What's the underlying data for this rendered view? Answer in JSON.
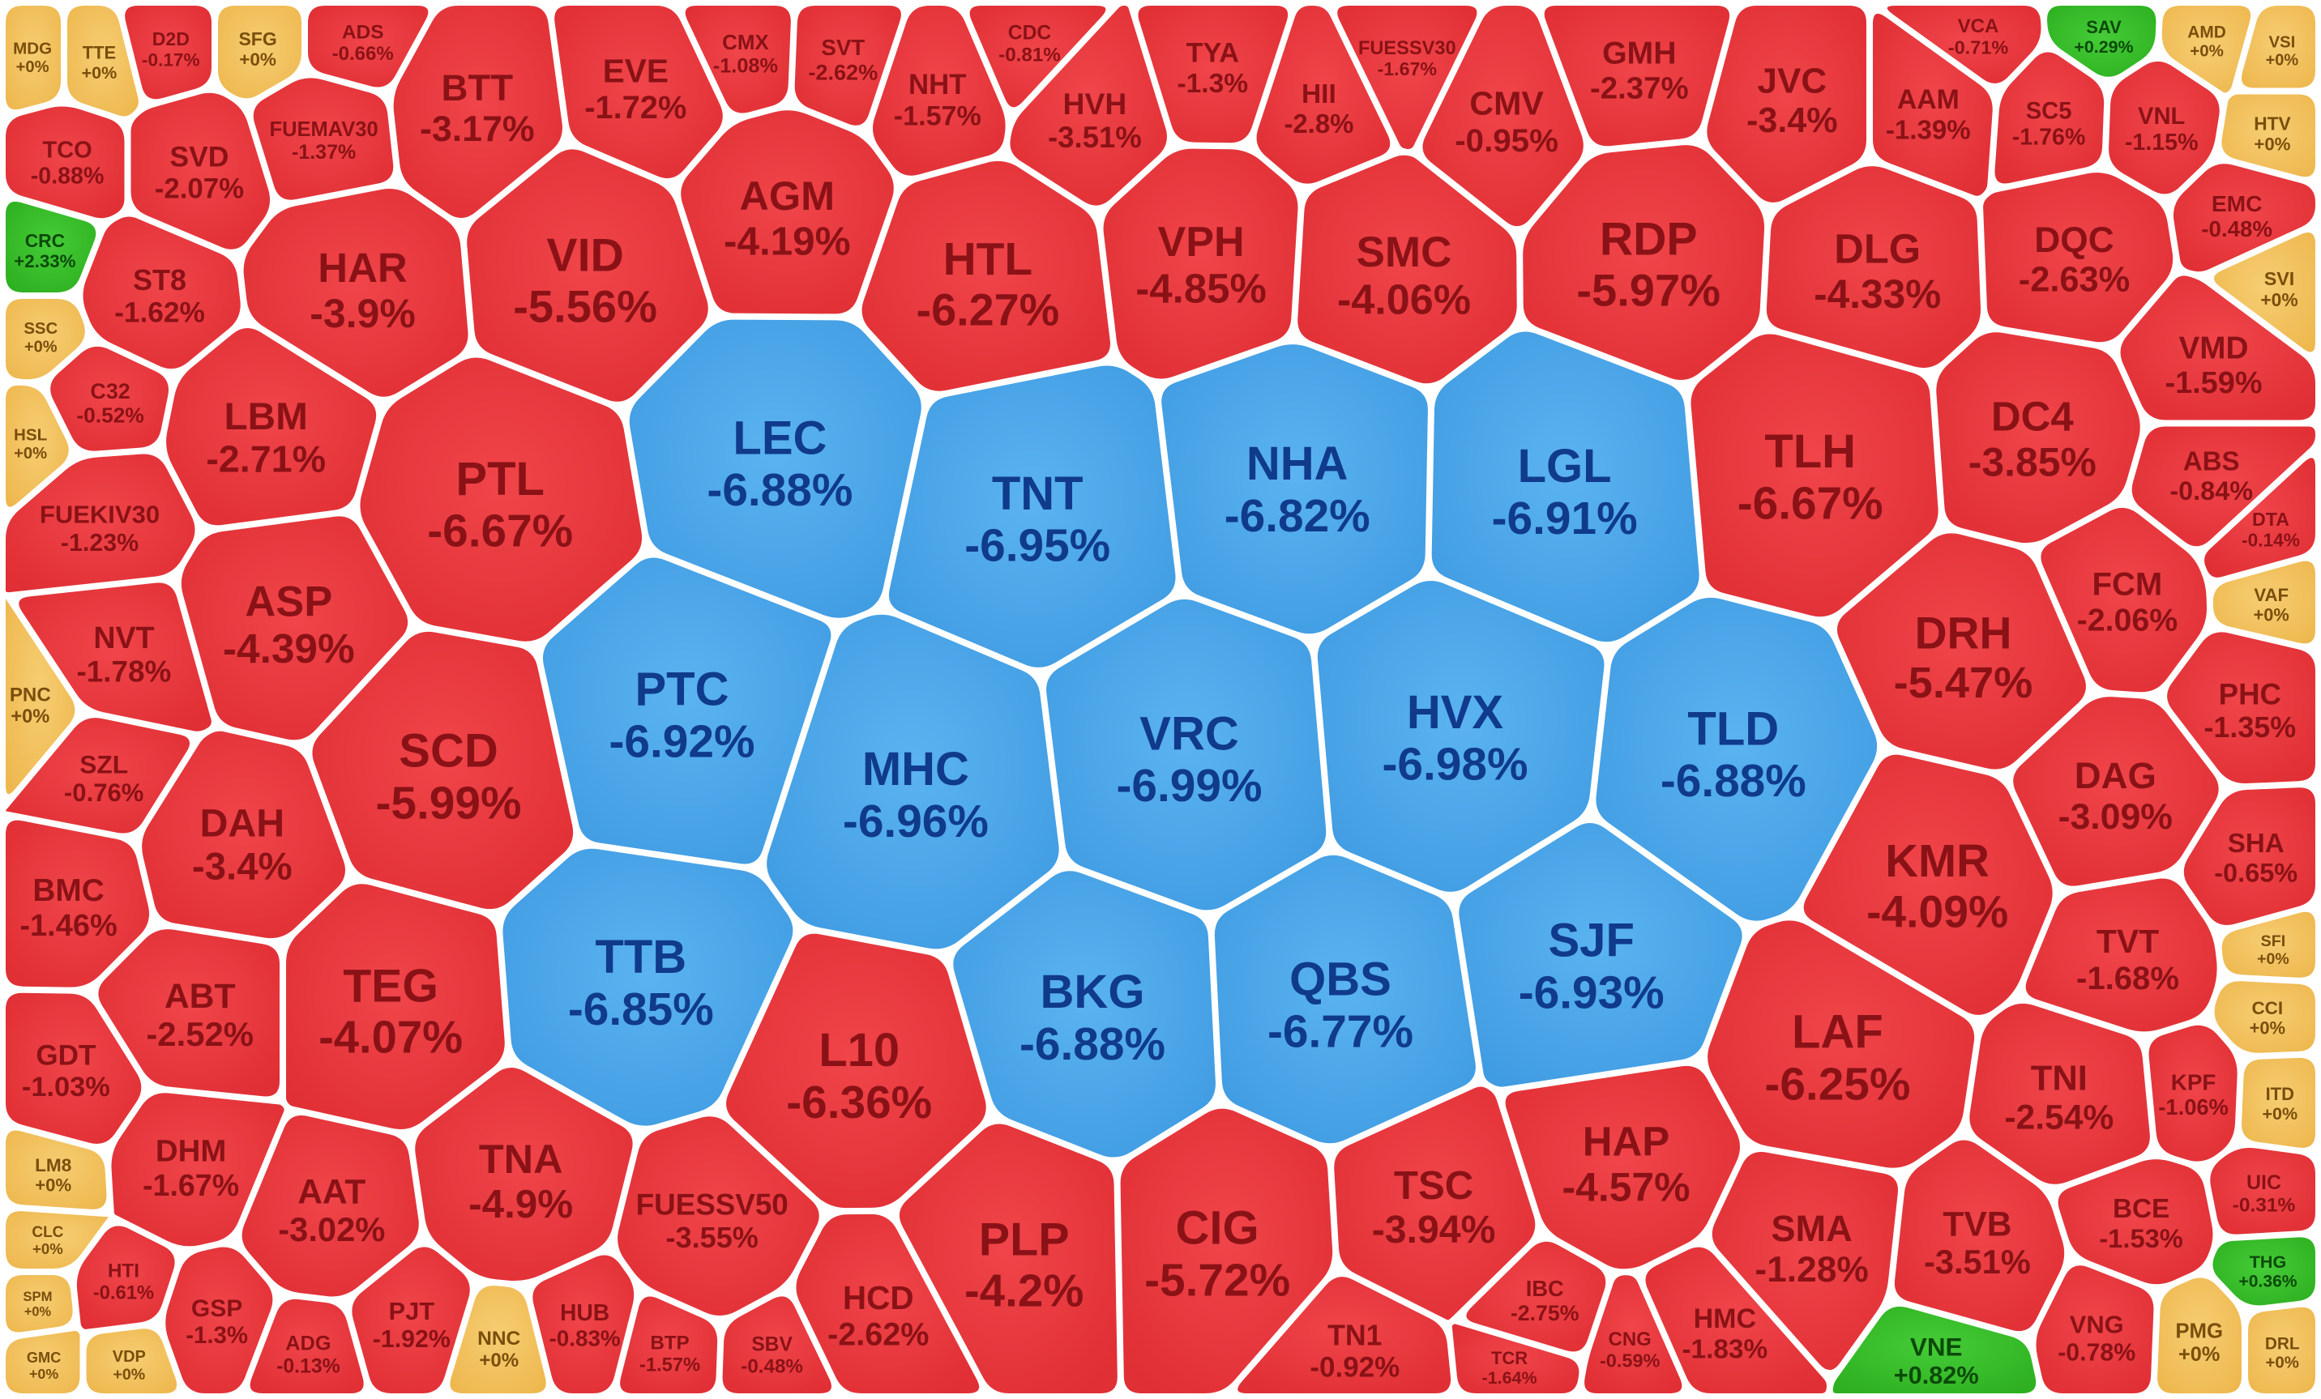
{
  "chart_data": {
    "type": "heatmap",
    "subtype": "voronoi-market-map",
    "value_unit": "%",
    "colors": {
      "down": "#e8343a",
      "down_text": "#8a1216",
      "floor": "#4ba6e8",
      "floor_text": "#103a8c",
      "flat": "#f2c360",
      "flat_text": "#7a4e0c",
      "up": "#34c028",
      "up_text": "#0b4a09",
      "border": "#ffffff"
    },
    "stocks": [
      {
        "ticker": "LEC",
        "change": "-6.88%",
        "state": "floor"
      },
      {
        "ticker": "TNT",
        "change": "-6.95%",
        "state": "floor"
      },
      {
        "ticker": "NHA",
        "change": "-6.82%",
        "state": "floor"
      },
      {
        "ticker": "LGL",
        "change": "-6.91%",
        "state": "floor"
      },
      {
        "ticker": "PTC",
        "change": "-6.92%",
        "state": "floor"
      },
      {
        "ticker": "MHC",
        "change": "-6.96%",
        "state": "floor"
      },
      {
        "ticker": "VRC",
        "change": "-6.99%",
        "state": "floor"
      },
      {
        "ticker": "HVX",
        "change": "-6.98%",
        "state": "floor"
      },
      {
        "ticker": "TLD",
        "change": "-6.88%",
        "state": "floor"
      },
      {
        "ticker": "TTB",
        "change": "-6.85%",
        "state": "floor"
      },
      {
        "ticker": "BKG",
        "change": "-6.88%",
        "state": "floor"
      },
      {
        "ticker": "QBS",
        "change": "-6.77%",
        "state": "floor"
      },
      {
        "ticker": "SJF",
        "change": "-6.93%",
        "state": "floor"
      },
      {
        "ticker": "HTL",
        "change": "-6.27%",
        "state": "down"
      },
      {
        "ticker": "VPH",
        "change": "-4.85%",
        "state": "down"
      },
      {
        "ticker": "SMC",
        "change": "-4.06%",
        "state": "down"
      },
      {
        "ticker": "RDP",
        "change": "-5.97%",
        "state": "down"
      },
      {
        "ticker": "DLG",
        "change": "-4.33%",
        "state": "down"
      },
      {
        "ticker": "AGM",
        "change": "-4.19%",
        "state": "down"
      },
      {
        "ticker": "VID",
        "change": "-5.56%",
        "state": "down"
      },
      {
        "ticker": "HAR",
        "change": "-3.9%",
        "state": "down"
      },
      {
        "ticker": "BTT",
        "change": "-3.17%",
        "state": "down"
      },
      {
        "ticker": "SVD",
        "change": "-2.07%",
        "state": "down"
      },
      {
        "ticker": "JVC",
        "change": "-3.4%",
        "state": "down"
      },
      {
        "ticker": "SC5",
        "change": "-1.76%",
        "state": "down"
      },
      {
        "ticker": "DQC",
        "change": "-2.63%",
        "state": "down"
      },
      {
        "ticker": "VNL",
        "change": "-1.15%",
        "state": "down"
      },
      {
        "ticker": "PTL",
        "change": "-6.67%",
        "state": "down"
      },
      {
        "ticker": "LBM",
        "change": "-2.71%",
        "state": "down"
      },
      {
        "ticker": "ASP",
        "change": "-4.39%",
        "state": "down"
      },
      {
        "ticker": "SCD",
        "change": "-5.99%",
        "state": "down"
      },
      {
        "ticker": "DAH",
        "change": "-3.4%",
        "state": "down"
      },
      {
        "ticker": "TEG",
        "change": "-4.07%",
        "state": "down"
      },
      {
        "ticker": "ABT",
        "change": "-2.52%",
        "state": "down"
      },
      {
        "ticker": "TNA",
        "change": "-4.9%",
        "state": "down"
      },
      {
        "ticker": "AAT",
        "change": "-3.02%",
        "state": "down"
      },
      {
        "ticker": "L10",
        "change": "-6.36%",
        "state": "down"
      },
      {
        "ticker": "PLP",
        "change": "-4.2%",
        "state": "down"
      },
      {
        "ticker": "CIG",
        "change": "-5.72%",
        "state": "down"
      },
      {
        "ticker": "TSC",
        "change": "-3.94%",
        "state": "down"
      },
      {
        "ticker": "HAP",
        "change": "-4.57%",
        "state": "down"
      },
      {
        "ticker": "LAF",
        "change": "-6.25%",
        "state": "down"
      },
      {
        "ticker": "TLH",
        "change": "-6.67%",
        "state": "down"
      },
      {
        "ticker": "DC4",
        "change": "-3.85%",
        "state": "down"
      },
      {
        "ticker": "DRH",
        "change": "-5.47%",
        "state": "down"
      },
      {
        "ticker": "KMR",
        "change": "-4.09%",
        "state": "down"
      },
      {
        "ticker": "DAG",
        "change": "-3.09%",
        "state": "down"
      },
      {
        "ticker": "TVB",
        "change": "-3.51%",
        "state": "down"
      },
      {
        "ticker": "TNI",
        "change": "-2.54%",
        "state": "down"
      },
      {
        "ticker": "FUESSV50",
        "change": "-3.55%",
        "state": "down"
      },
      {
        "ticker": "SMA",
        "change": "-1.28%",
        "state": "down"
      },
      {
        "ticker": "BCE",
        "change": "-1.53%",
        "state": "down"
      },
      {
        "ticker": "VMD",
        "change": "-1.59%",
        "state": "down"
      },
      {
        "ticker": "FCM",
        "change": "-2.06%",
        "state": "down"
      },
      {
        "ticker": "TVT",
        "change": "-1.68%",
        "state": "down"
      },
      {
        "ticker": "ST8",
        "change": "-1.62%",
        "state": "down"
      },
      {
        "ticker": "TCO",
        "change": "-0.88%",
        "state": "down"
      },
      {
        "ticker": "EVE",
        "change": "-1.72%",
        "state": "down"
      },
      {
        "ticker": "NHT",
        "change": "-1.57%",
        "state": "down"
      },
      {
        "ticker": "HVH",
        "change": "-3.51%",
        "state": "down"
      },
      {
        "ticker": "TYA",
        "change": "-1.3%",
        "state": "down"
      },
      {
        "ticker": "HII",
        "change": "-2.8%",
        "state": "down"
      },
      {
        "ticker": "CMV",
        "change": "-0.95%",
        "state": "down"
      },
      {
        "ticker": "GMH",
        "change": "-2.37%",
        "state": "down"
      },
      {
        "ticker": "NVT",
        "change": "-1.78%",
        "state": "down"
      },
      {
        "ticker": "BMC",
        "change": "-1.46%",
        "state": "down"
      },
      {
        "ticker": "GDT",
        "change": "-1.03%",
        "state": "down"
      },
      {
        "ticker": "DHM",
        "change": "-1.67%",
        "state": "down"
      },
      {
        "ticker": "GSP",
        "change": "-1.3%",
        "state": "down"
      },
      {
        "ticker": "PJT",
        "change": "-1.92%",
        "state": "down"
      },
      {
        "ticker": "HCD",
        "change": "-2.62%",
        "state": "down"
      },
      {
        "ticker": "IBC",
        "change": "-2.75%",
        "state": "down"
      },
      {
        "ticker": "HMC",
        "change": "-1.83%",
        "state": "down"
      },
      {
        "ticker": "VNG",
        "change": "-0.78%",
        "state": "down"
      },
      {
        "ticker": "KPF",
        "change": "-1.06%",
        "state": "down"
      },
      {
        "ticker": "PHC",
        "change": "-1.35%",
        "state": "down"
      },
      {
        "ticker": "HUB",
        "change": "-0.83%",
        "state": "down"
      },
      {
        "ticker": "TCR",
        "change": "-1.64%",
        "state": "down"
      },
      {
        "ticker": "FUEKIV30",
        "change": "-1.23%",
        "state": "down"
      },
      {
        "ticker": "FUEMAV30",
        "change": "-1.37%",
        "state": "down"
      },
      {
        "ticker": "C32",
        "change": "-0.52%",
        "state": "down"
      },
      {
        "ticker": "HTI",
        "change": "-0.61%",
        "state": "down"
      },
      {
        "ticker": "SZL",
        "change": "-0.76%",
        "state": "down"
      },
      {
        "ticker": "ABS",
        "change": "-0.84%",
        "state": "down"
      },
      {
        "ticker": "EMC",
        "change": "-0.48%",
        "state": "down"
      },
      {
        "ticker": "SHA",
        "change": "-0.65%",
        "state": "down"
      },
      {
        "ticker": "UIC",
        "change": "-0.31%",
        "state": "down"
      },
      {
        "ticker": "D2D",
        "change": "-0.17%",
        "state": "down"
      },
      {
        "ticker": "ADS",
        "change": "-0.66%",
        "state": "down"
      },
      {
        "ticker": "CMX",
        "change": "-1.08%",
        "state": "down"
      },
      {
        "ticker": "SVT",
        "change": "-2.62%",
        "state": "down"
      },
      {
        "ticker": "FUESSV30",
        "change": "-1.67%",
        "state": "down"
      },
      {
        "ticker": "VCA",
        "change": "-0.71%",
        "state": "down"
      },
      {
        "ticker": "AAM",
        "change": "-1.39%",
        "state": "down"
      },
      {
        "ticker": "DTA",
        "change": "-0.14%",
        "state": "down"
      },
      {
        "ticker": "ADG",
        "change": "-0.13%",
        "state": "down"
      },
      {
        "ticker": "BTP",
        "change": "-1.57%",
        "state": "down"
      },
      {
        "ticker": "SBV",
        "change": "-0.48%",
        "state": "down"
      },
      {
        "ticker": "TN1",
        "change": "-0.92%",
        "state": "down"
      },
      {
        "ticker": "CNG",
        "change": "-0.59%",
        "state": "down"
      },
      {
        "ticker": "CDC",
        "change": "-0.81%",
        "state": "down"
      },
      {
        "ticker": "MDG",
        "change": "+0%",
        "state": "flat"
      },
      {
        "ticker": "TTE",
        "change": "+0%",
        "state": "flat"
      },
      {
        "ticker": "SFG",
        "change": "+0%",
        "state": "flat"
      },
      {
        "ticker": "SSC",
        "change": "+0%",
        "state": "flat"
      },
      {
        "ticker": "HSL",
        "change": "+0%",
        "state": "flat"
      },
      {
        "ticker": "PNC",
        "change": "+0%",
        "state": "flat"
      },
      {
        "ticker": "LM8",
        "change": "+0%",
        "state": "flat"
      },
      {
        "ticker": "CLC",
        "change": "+0%",
        "state": "flat"
      },
      {
        "ticker": "SPM",
        "change": "+0%",
        "state": "flat"
      },
      {
        "ticker": "GMC",
        "change": "+0%",
        "state": "flat"
      },
      {
        "ticker": "VDP",
        "change": "+0%",
        "state": "flat"
      },
      {
        "ticker": "NNC",
        "change": "+0%",
        "state": "flat"
      },
      {
        "ticker": "VSI",
        "change": "+0%",
        "state": "flat"
      },
      {
        "ticker": "HTV",
        "change": "+0%",
        "state": "flat"
      },
      {
        "ticker": "SVI",
        "change": "+0%",
        "state": "flat"
      },
      {
        "ticker": "VAF",
        "change": "+0%",
        "state": "flat"
      },
      {
        "ticker": "SFI",
        "change": "+0%",
        "state": "flat"
      },
      {
        "ticker": "CCI",
        "change": "+0%",
        "state": "flat"
      },
      {
        "ticker": "ITD",
        "change": "+0%",
        "state": "flat"
      },
      {
        "ticker": "PMG",
        "change": "+0%",
        "state": "flat"
      },
      {
        "ticker": "DRL",
        "change": "+0%",
        "state": "flat"
      },
      {
        "ticker": "AMD",
        "change": "+0%",
        "state": "flat"
      },
      {
        "ticker": "CRC",
        "change": "+2.33%",
        "state": "up"
      },
      {
        "ticker": "THG",
        "change": "+0.36%",
        "state": "up"
      },
      {
        "ticker": "SAV",
        "change": "+0.29%",
        "state": "up"
      },
      {
        "ticker": "VNE",
        "change": "+0.82%",
        "state": "up"
      }
    ]
  }
}
